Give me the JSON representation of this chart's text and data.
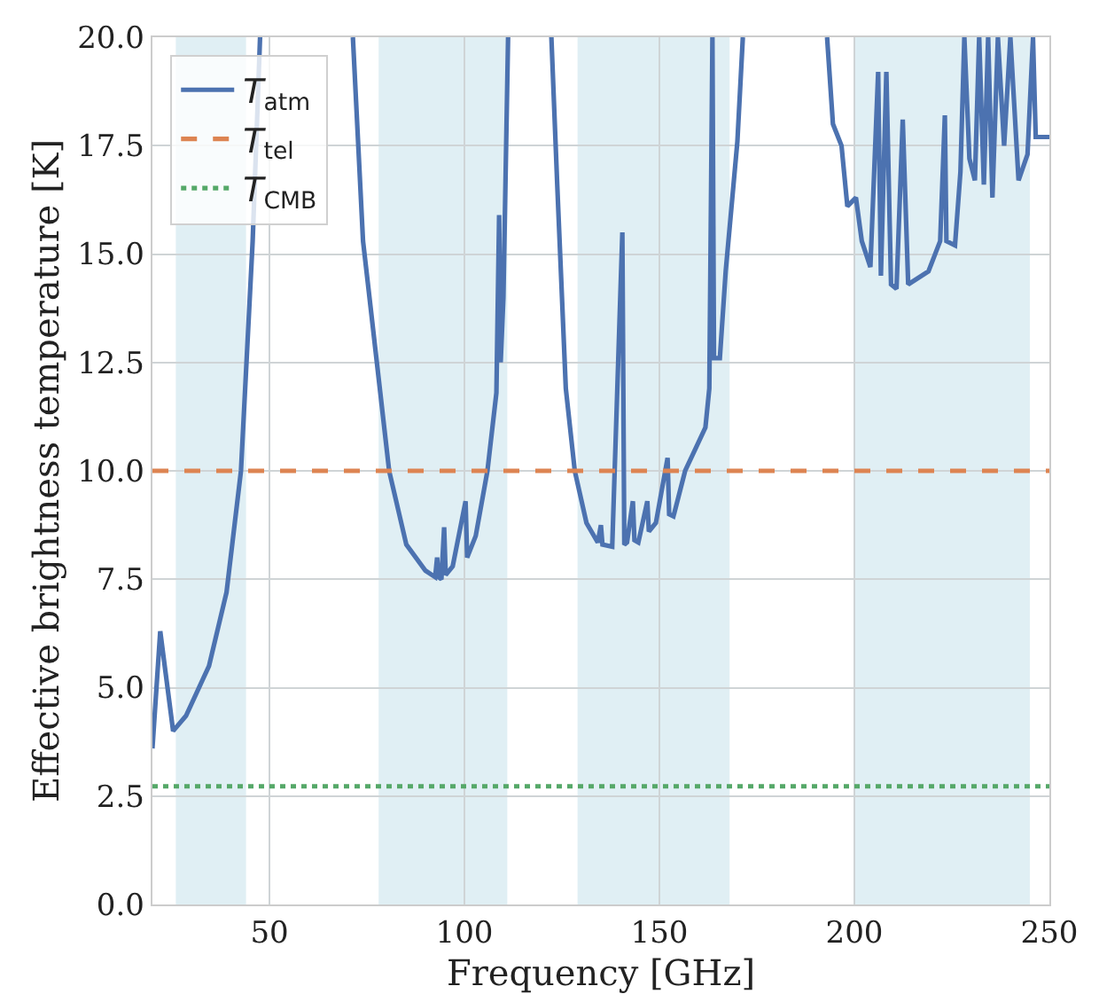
{
  "chart_data": {
    "type": "line",
    "xlabel": "Frequency [GHz]",
    "ylabel": "Effective brightness temperature [K]",
    "xlim": [
      20,
      250
    ],
    "xticks": [
      50,
      100,
      150,
      200,
      250
    ],
    "ylim": [
      0,
      20
    ],
    "yticks": [
      {
        "value": 0,
        "label": "0.0"
      },
      {
        "value": 2.5,
        "label": "2.5"
      },
      {
        "value": 5,
        "label": "5.0"
      },
      {
        "value": 7.5,
        "label": "7.5"
      },
      {
        "value": 10,
        "label": "10.0"
      },
      {
        "value": 12.5,
        "label": "12.5"
      },
      {
        "value": 15,
        "label": "15.0"
      },
      {
        "value": 17.5,
        "label": "17.5"
      },
      {
        "value": 20,
        "label": "20.0"
      }
    ],
    "grid": true,
    "legend": "top left",
    "line_style": "solid",
    "series": [
      {
        "name": "T$_{atm}$",
        "color": "#4c72b0",
        "x": [
          20,
          22,
          25.3,
          28.6,
          34.5,
          39,
          42.7,
          45.7,
          47.6,
          60,
          71.4,
          74,
          75.4,
          80.7,
          85.1,
          90,
          92.5,
          93,
          93.4,
          94.1,
          94.8,
          95.2,
          97,
          100.3,
          100.7,
          102.9,
          105.9,
          108.2,
          108.9,
          109.3,
          110,
          111.2,
          117,
          122.3,
          123.8,
          126,
          128.3,
          131.3,
          134.2,
          135,
          135.4,
          137.9,
          140.5,
          141,
          141.7,
          143.2,
          143.6,
          144.6,
          146.9,
          147.3,
          149.1,
          152.1,
          152.5,
          153.6,
          156.6,
          161.8,
          162.8,
          163.6,
          164,
          165.5,
          167,
          170,
          171.4,
          182,
          193,
          194.5,
          196.7,
          198.2,
          200.4,
          201.9,
          204.1,
          206.1,
          206.8,
          208.2,
          209.4,
          210.8,
          212.4,
          213.8,
          219,
          222,
          223.2,
          223.6,
          225.8,
          227.2,
          228.2,
          229.5,
          230.9,
          232,
          233.2,
          234.3,
          235.4,
          236.8,
          238.4,
          240,
          242.1,
          244.4,
          245.8,
          246.5,
          250
        ],
        "values": [
          3.6,
          6.3,
          4.0,
          4.35,
          5.5,
          7.2,
          10,
          15.3,
          20,
          null,
          20,
          15.3,
          14.2,
          10,
          8.3,
          7.7,
          7.55,
          8.0,
          7.55,
          7.5,
          8.7,
          7.6,
          7.8,
          9.3,
          8.0,
          8.5,
          10,
          11.8,
          15.9,
          12.5,
          14,
          20,
          null,
          20,
          16.6,
          11.9,
          10,
          8.8,
          8.35,
          8.75,
          8.3,
          8.25,
          15.5,
          8.3,
          8.35,
          9.3,
          8.4,
          8.35,
          9.3,
          8.6,
          8.8,
          10.3,
          9.0,
          8.95,
          10,
          11,
          11.9,
          20,
          12.6,
          12.6,
          14.6,
          17.6,
          20,
          null,
          20,
          18,
          17.5,
          16.1,
          16.3,
          15.3,
          14.7,
          19.2,
          14.5,
          19.2,
          14.3,
          14.2,
          18.1,
          14.3,
          14.6,
          15.3,
          18.2,
          15.3,
          15.2,
          16.9,
          20,
          17.2,
          16.7,
          20,
          16.6,
          20,
          16.3,
          20,
          17.5,
          20,
          16.7,
          17.3,
          20,
          17.7,
          17.7
        ]
      }
    ],
    "ref_lines": [
      {
        "axis": "y",
        "value": 10,
        "label": "T$_{tel}$",
        "color": "#dd8452",
        "line_style": "dashed"
      },
      {
        "axis": "y",
        "value": 2.725,
        "label": "T$_{CMB}$",
        "color": "#55a868",
        "line_style": "dotted"
      }
    ],
    "bands": [
      {
        "axis": "x",
        "from": 26,
        "to": 44,
        "color": "#e0eff4"
      },
      {
        "axis": "x",
        "from": 78,
        "to": 111,
        "color": "#e0eff4"
      },
      {
        "axis": "x",
        "from": 129,
        "to": 168,
        "color": "#e0eff4"
      },
      {
        "axis": "x",
        "from": 200,
        "to": 245,
        "color": "#e0eff4"
      }
    ]
  }
}
